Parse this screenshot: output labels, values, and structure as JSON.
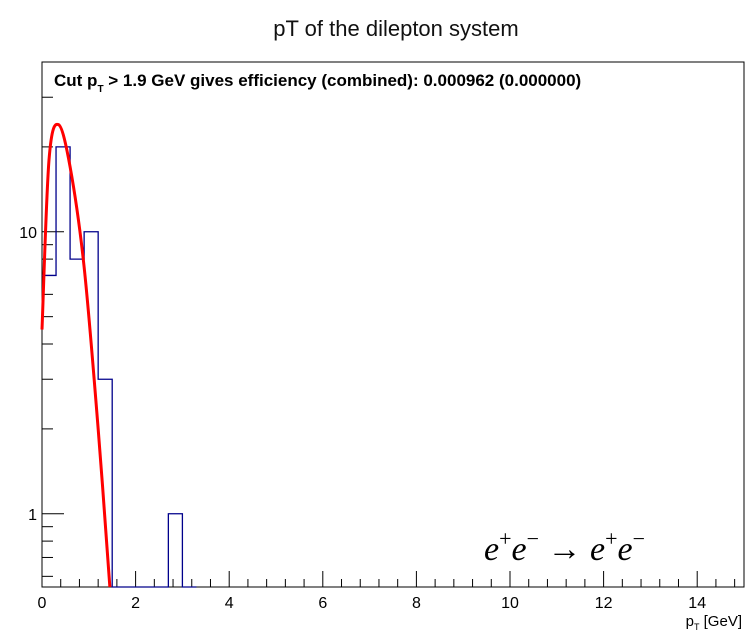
{
  "chart_data": {
    "type": "histogram",
    "title": "pT of the dilepton system",
    "annotation": {
      "prefix": "Cut p",
      "sub": "T",
      "suffix": " > 1.9 GeV gives efficiency (combined): 0.000962 (0.000000)"
    },
    "process_label": {
      "e1": "e",
      "s1": "+",
      "e2": "e",
      "s2": "−",
      "arrow": " → ",
      "e3": "e",
      "s3": "+",
      "e4": "e",
      "s4": "−"
    },
    "xlabel": {
      "main": "p",
      "sub": "T",
      "unit": " [GeV]"
    },
    "ylabel": "",
    "xlim": [
      0,
      15
    ],
    "ylim": [
      0.55,
      40
    ],
    "y_log": true,
    "grid": false,
    "x_ticks": [
      0,
      2,
      4,
      6,
      8,
      10,
      12,
      14
    ],
    "y_ticks": [
      1,
      10
    ],
    "x_minor_step": 0.4,
    "bin_width": 0.3,
    "histogram": {
      "color": "#00008b",
      "bins": [
        {
          "low": 0.0,
          "value": 7
        },
        {
          "low": 0.3,
          "value": 20
        },
        {
          "low": 0.6,
          "value": 8
        },
        {
          "low": 0.9,
          "value": 10
        },
        {
          "low": 1.2,
          "value": 3
        },
        {
          "low": 1.5,
          "value": 0
        },
        {
          "low": 1.8,
          "value": 0
        },
        {
          "low": 2.1,
          "value": 0
        },
        {
          "low": 2.4,
          "value": 0
        },
        {
          "low": 2.7,
          "value": 1
        },
        {
          "low": 3.0,
          "value": 0
        }
      ]
    },
    "fit": {
      "color": "#ff0000",
      "points": [
        {
          "x": 0.0,
          "y": 4.5
        },
        {
          "x": 0.15,
          "y": 18
        },
        {
          "x": 0.35,
          "y": 24
        },
        {
          "x": 0.6,
          "y": 17
        },
        {
          "x": 0.9,
          "y": 7.5
        },
        {
          "x": 1.2,
          "y": 2.0
        },
        {
          "x": 1.45,
          "y": 0.55
        }
      ]
    }
  }
}
